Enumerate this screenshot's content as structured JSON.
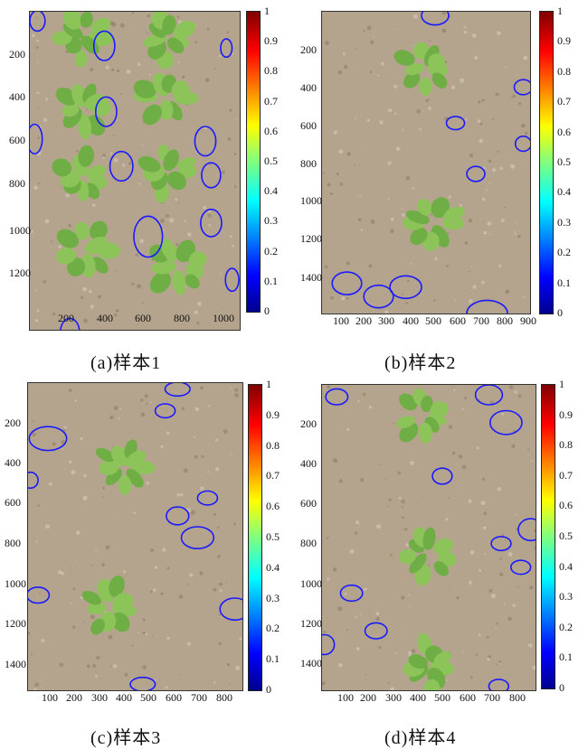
{
  "figures": [
    {
      "caption": "(a)样本1",
      "yticks": [
        "200",
        "400",
        "600",
        "800",
        "1000",
        "1200"
      ],
      "xticks": [
        "200",
        "400",
        "600",
        "800",
        "1000"
      ],
      "cbar_ticks": [
        "1",
        "0.9",
        "0.8",
        "0.7",
        "0.6",
        "0.5",
        "0.4",
        "0.3",
        "0.2",
        "0.1",
        "0"
      ]
    },
    {
      "caption": "(b)样本2",
      "yticks": [
        "200",
        "400",
        "600",
        "800",
        "1000",
        "1200",
        "1400"
      ],
      "xticks": [
        "100",
        "200",
        "300",
        "400",
        "500",
        "600",
        "700",
        "800",
        "900"
      ],
      "cbar_ticks": [
        "1",
        "0.9",
        "0.8",
        "0.7",
        "0.6",
        "0.5",
        "0.4",
        "0.3",
        "0.2",
        "0.1",
        "0"
      ]
    },
    {
      "caption": "(c)样本3",
      "yticks": [
        "200",
        "400",
        "600",
        "800",
        "1000",
        "1200",
        "1400"
      ],
      "xticks": [
        "100",
        "200",
        "300",
        "400",
        "500",
        "600",
        "700",
        "800"
      ],
      "cbar_ticks": [
        "1",
        "0.9",
        "0.8",
        "0.7",
        "0.6",
        "0.5",
        "0.4",
        "0.3",
        "0.2",
        "0.1",
        "0"
      ]
    },
    {
      "caption": "(d)样本4",
      "yticks": [
        "200",
        "400",
        "600",
        "800",
        "1000",
        "1200",
        "1400"
      ],
      "xticks": [
        "100",
        "200",
        "300",
        "400",
        "500",
        "600",
        "700",
        "800"
      ],
      "cbar_ticks": [
        "1",
        "0.9",
        "0.8",
        "0.7",
        "0.6",
        "0.5",
        "0.4",
        "0.3",
        "0.2",
        "0.1",
        "0"
      ]
    }
  ],
  "colors": {
    "circle": "#1a1aff",
    "soil": "#b5a48d",
    "leaf": "#6fae45"
  },
  "chart_data": {
    "type": "heatmap",
    "panels": [
      {
        "caption": "(a)样本1",
        "xlim": [
          0,
          1100
        ],
        "ylim": [
          1400,
          0
        ],
        "colorbar": {
          "range": [
            0,
            1
          ],
          "ticks": [
            0,
            0.1,
            0.2,
            0.3,
            0.4,
            0.5,
            0.6,
            0.7,
            0.8,
            0.9,
            1
          ]
        },
        "detections": [
          {
            "x": 40,
            "y": 40,
            "w": 80,
            "h": 90
          },
          {
            "x": 390,
            "y": 150,
            "w": 110,
            "h": 130
          },
          {
            "x": 1030,
            "y": 160,
            "w": 60,
            "h": 80
          },
          {
            "x": 400,
            "y": 440,
            "w": 110,
            "h": 130
          },
          {
            "x": 25,
            "y": 560,
            "w": 80,
            "h": 130
          },
          {
            "x": 920,
            "y": 570,
            "w": 110,
            "h": 130
          },
          {
            "x": 480,
            "y": 680,
            "w": 120,
            "h": 130
          },
          {
            "x": 950,
            "y": 720,
            "w": 100,
            "h": 110
          },
          {
            "x": 620,
            "y": 990,
            "w": 150,
            "h": 180
          },
          {
            "x": 950,
            "y": 930,
            "w": 110,
            "h": 120
          },
          {
            "x": 1060,
            "y": 1180,
            "w": 70,
            "h": 100
          },
          {
            "x": 210,
            "y": 1410,
            "w": 100,
            "h": 120
          }
        ]
      },
      {
        "caption": "(b)样本2",
        "xlim": [
          0,
          920
        ],
        "ylim": [
          1600,
          0
        ],
        "colorbar": {
          "range": [
            0,
            1
          ],
          "ticks": [
            0,
            0.1,
            0.2,
            0.3,
            0.4,
            0.5,
            0.6,
            0.7,
            0.8,
            0.9,
            1
          ]
        },
        "detections": [
          {
            "x": 500,
            "y": 20,
            "w": 120,
            "h": 100
          },
          {
            "x": 890,
            "y": 400,
            "w": 80,
            "h": 80
          },
          {
            "x": 590,
            "y": 590,
            "w": 80,
            "h": 70
          },
          {
            "x": 890,
            "y": 700,
            "w": 70,
            "h": 80
          },
          {
            "x": 680,
            "y": 860,
            "w": 80,
            "h": 80
          },
          {
            "x": 110,
            "y": 1440,
            "w": 130,
            "h": 120
          },
          {
            "x": 250,
            "y": 1510,
            "w": 130,
            "h": 120
          },
          {
            "x": 370,
            "y": 1460,
            "w": 140,
            "h": 120
          },
          {
            "x": 730,
            "y": 1600,
            "w": 180,
            "h": 140
          }
        ]
      },
      {
        "caption": "(c)样本3",
        "xlim": [
          0,
          860
        ],
        "ylim": [
          1550,
          0
        ],
        "colorbar": {
          "range": [
            0,
            1
          ],
          "ticks": [
            0,
            0.1,
            0.2,
            0.3,
            0.4,
            0.5,
            0.6,
            0.7,
            0.8,
            0.9,
            1
          ]
        },
        "detections": [
          {
            "x": 600,
            "y": 30,
            "w": 100,
            "h": 70
          },
          {
            "x": 550,
            "y": 140,
            "w": 80,
            "h": 70
          },
          {
            "x": 80,
            "y": 280,
            "w": 150,
            "h": 120
          },
          {
            "x": 10,
            "y": 490,
            "w": 60,
            "h": 80
          },
          {
            "x": 720,
            "y": 580,
            "w": 80,
            "h": 70
          },
          {
            "x": 600,
            "y": 670,
            "w": 90,
            "h": 90
          },
          {
            "x": 680,
            "y": 780,
            "w": 130,
            "h": 110
          },
          {
            "x": 40,
            "y": 1070,
            "w": 90,
            "h": 80
          },
          {
            "x": 830,
            "y": 1140,
            "w": 120,
            "h": 110
          },
          {
            "x": 460,
            "y": 1520,
            "w": 100,
            "h": 70
          }
        ]
      },
      {
        "caption": "(d)样本4",
        "xlim": [
          0,
          870
        ],
        "ylim": [
          1540,
          0
        ],
        "colorbar": {
          "range": [
            0,
            1
          ],
          "ticks": [
            0,
            0.1,
            0.2,
            0.3,
            0.4,
            0.5,
            0.6,
            0.7,
            0.8,
            0.9,
            1
          ]
        },
        "detections": [
          {
            "x": 60,
            "y": 60,
            "w": 90,
            "h": 80
          },
          {
            "x": 680,
            "y": 50,
            "w": 110,
            "h": 100
          },
          {
            "x": 750,
            "y": 190,
            "w": 130,
            "h": 120
          },
          {
            "x": 490,
            "y": 460,
            "w": 80,
            "h": 80
          },
          {
            "x": 850,
            "y": 730,
            "w": 100,
            "h": 110
          },
          {
            "x": 730,
            "y": 800,
            "w": 80,
            "h": 70
          },
          {
            "x": 810,
            "y": 920,
            "w": 80,
            "h": 70
          },
          {
            "x": 120,
            "y": 1050,
            "w": 90,
            "h": 80
          },
          {
            "x": 10,
            "y": 1310,
            "w": 80,
            "h": 100
          },
          {
            "x": 220,
            "y": 1240,
            "w": 90,
            "h": 80
          },
          {
            "x": 720,
            "y": 1520,
            "w": 80,
            "h": 70
          }
        ]
      }
    ]
  }
}
